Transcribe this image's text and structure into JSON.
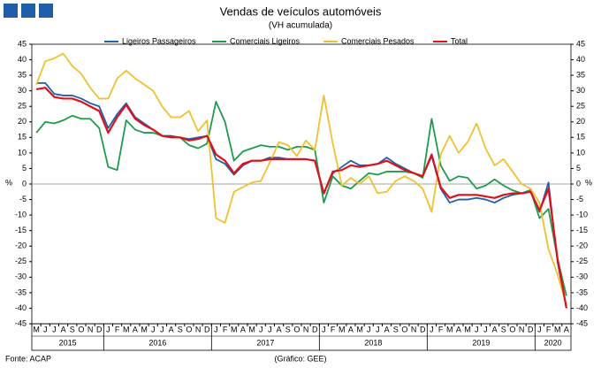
{
  "chart_data": {
    "type": "line",
    "title": "Vendas de veículos automóveis",
    "subtitle": "(VH acumulada)",
    "source": "Fonte: ACAP",
    "credit": "(Gráfico: GEE)",
    "ylabel": "%",
    "y2label": "%",
    "categories": [
      "M",
      "J",
      "J",
      "A",
      "S",
      "O",
      "N",
      "D",
      "J",
      "F",
      "M",
      "A",
      "M",
      "J",
      "J",
      "A",
      "S",
      "O",
      "N",
      "D",
      "J",
      "F",
      "M",
      "A",
      "M",
      "J",
      "J",
      "A",
      "S",
      "O",
      "N",
      "D",
      "J",
      "F",
      "M",
      "A",
      "M",
      "J",
      "J",
      "A",
      "S",
      "O",
      "N",
      "D",
      "J",
      "F",
      "M",
      "A",
      "M",
      "J",
      "J",
      "A",
      "S",
      "O",
      "N",
      "D",
      "J",
      "F",
      "M",
      "A"
    ],
    "years": [
      "2015",
      "2016",
      "2017",
      "2018",
      "2019",
      "2020"
    ],
    "ylim": [
      -45,
      45
    ],
    "yticks": [
      -45,
      -40,
      -35,
      -30,
      -25,
      -20,
      -15,
      -10,
      -5,
      0,
      5,
      10,
      15,
      20,
      25,
      30,
      35,
      40,
      45
    ],
    "y2lim": [
      -45,
      45
    ],
    "y2ticks": [
      -45,
      -40,
      -35,
      -30,
      -25,
      -20,
      -15,
      -10,
      -5,
      0,
      5,
      10,
      15,
      20,
      25,
      30,
      35,
      40,
      45
    ],
    "grid": false,
    "legend": "top",
    "series": [
      {
        "name": "Ligeiros Passageiros",
        "color": "#1f5fa8",
        "values": [
          32.5,
          32.5,
          29,
          28.5,
          28.5,
          27.5,
          26,
          25,
          18,
          22.5,
          26,
          21.5,
          19.5,
          17.5,
          15.5,
          15.5,
          15,
          14.5,
          15,
          15.5,
          8,
          6.5,
          3,
          6,
          7.5,
          7.5,
          8.5,
          8.5,
          8,
          8,
          8,
          7.5,
          -3,
          3.5,
          5.5,
          7.5,
          6,
          6,
          6.5,
          8.5,
          6.5,
          5,
          3.5,
          2.5,
          9,
          -1.5,
          -6,
          -5,
          -5,
          -4.5,
          -5,
          -6,
          -4.5,
          -3.5,
          -3,
          -2,
          -9,
          0.5,
          -25,
          -40
        ]
      },
      {
        "name": "Comerciais Ligeiros",
        "color": "#1e9b4f",
        "values": [
          16.5,
          20,
          19.5,
          20.5,
          22,
          21,
          21,
          18,
          5.5,
          4.5,
          20.5,
          17.5,
          16.5,
          16.5,
          15.5,
          15,
          15,
          12.5,
          11.5,
          13,
          26.5,
          20,
          7.5,
          10.5,
          11.5,
          12.5,
          12,
          12,
          11,
          12,
          12,
          11,
          -6,
          2.5,
          -0.5,
          -1.5,
          1,
          3.5,
          3,
          4,
          4,
          4,
          3.5,
          2,
          21,
          6,
          1,
          2.5,
          2,
          -1.5,
          -0.5,
          1.5,
          -0.5,
          -2,
          -3,
          -2,
          -11,
          -8,
          -24,
          -36
        ]
      },
      {
        "name": "Comerciais Pesados",
        "color": "#f0c030",
        "values": [
          32,
          39.5,
          40.5,
          42,
          38,
          35.5,
          31,
          27.5,
          27.5,
          34,
          36.5,
          34,
          32,
          30,
          25,
          21.5,
          21.5,
          23.5,
          17,
          20.5,
          -11,
          -12.5,
          -2.5,
          -1,
          0.5,
          1,
          7,
          13.5,
          12.5,
          9,
          14,
          11,
          28.5,
          13,
          -0.5,
          2,
          0,
          2.5,
          -3,
          -2.5,
          1,
          2.5,
          1,
          -1.5,
          -9,
          9.5,
          15.5,
          10,
          13.5,
          19.5,
          11.5,
          6,
          8,
          4,
          0,
          -1.5,
          -6,
          -21,
          -29,
          -39
        ]
      },
      {
        "name": "Total",
        "color": "#e0101a",
        "values": [
          30.5,
          31,
          28,
          27.5,
          27.5,
          26.5,
          25,
          23.5,
          16.5,
          21.5,
          25.5,
          21,
          19,
          17.5,
          15.5,
          15,
          15,
          14,
          14.5,
          15.5,
          9.5,
          7.5,
          3.5,
          6.5,
          7.5,
          7.5,
          8,
          8,
          8,
          8,
          8,
          7.5,
          -3,
          4,
          4.5,
          6,
          5.5,
          6,
          6.5,
          7.5,
          6,
          4.5,
          3.5,
          2.5,
          9.5,
          -1,
          -4.5,
          -3.5,
          -3.5,
          -3.5,
          -4,
          -4.5,
          -3.5,
          -3,
          -3,
          -2.5,
          -8.5,
          -1.5,
          -24,
          -40
        ]
      }
    ]
  }
}
